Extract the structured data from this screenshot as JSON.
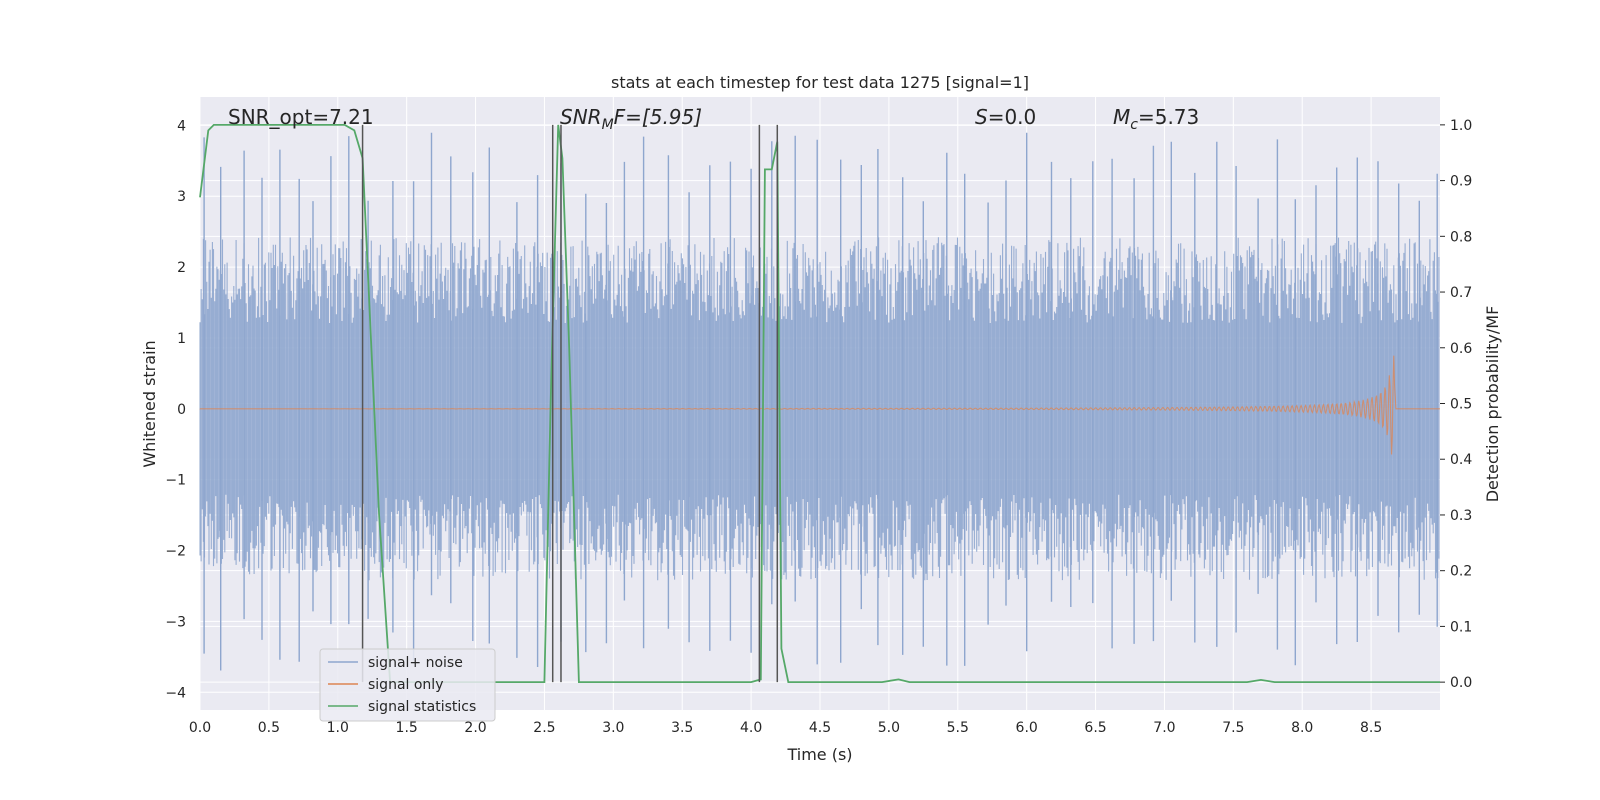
{
  "chart_data": {
    "type": "line",
    "title": "stats at each timestep for test data 1275 [signal=1]",
    "xlabel": "Time (s)",
    "ylabel_left": "Whitened strain",
    "ylabel_right": "Detection probability/MF",
    "xlim": [
      0.0,
      9.0
    ],
    "ylim_left": [
      -4.25,
      4.4
    ],
    "ylim_right": [
      -0.05,
      1.05
    ],
    "x_ticks": [
      "0.0",
      "0.5",
      "1.0",
      "1.5",
      "2.0",
      "2.5",
      "3.0",
      "3.5",
      "4.0",
      "4.5",
      "5.0",
      "5.5",
      "6.0",
      "6.5",
      "7.0",
      "7.5",
      "8.0",
      "8.5"
    ],
    "y_left_ticks": [
      "4",
      "3",
      "2",
      "1",
      "0",
      "−1",
      "−2",
      "−3",
      "−4"
    ],
    "y_right_ticks": [
      "1.0",
      "0.9",
      "0.8",
      "0.7",
      "0.6",
      "0.5",
      "0.4",
      "0.3",
      "0.2",
      "0.1",
      "0.0"
    ],
    "grid": true,
    "legend_placement": "lower-left",
    "annotations": {
      "snr_opt": "SNR_opt=7.21",
      "snr_mf_main": "SNR",
      "snr_mf_sub": "M",
      "snr_mf_rest": "F=[5.95]",
      "s_main": "S",
      "s_rest": "=0.0",
      "mc_main": "M",
      "mc_sub": "c",
      "mc_rest": "=5.73"
    },
    "series": [
      {
        "name": "signal+ noise",
        "color": "#8ea6ce",
        "axis": "left",
        "description_envelope": {
          "typical_abs": 2.2,
          "max": 4.0,
          "min": -3.9
        },
        "spikes_x": [
          0.03,
          0.15,
          0.32,
          0.45,
          0.58,
          0.72,
          0.82,
          0.95,
          1.08,
          1.22,
          1.4,
          1.55,
          1.68,
          1.82,
          1.98,
          2.1,
          2.3,
          2.45,
          2.62,
          2.8,
          2.95,
          3.08,
          3.22,
          3.4,
          3.55,
          3.7,
          3.85,
          4.0,
          4.15,
          4.32,
          4.48,
          4.65,
          4.8,
          4.92,
          5.1,
          5.25,
          5.42,
          5.55,
          5.72,
          5.85,
          6.0,
          6.18,
          6.32,
          6.48,
          6.62,
          6.78,
          6.92,
          7.05,
          7.22,
          7.38,
          7.52,
          7.68,
          7.82,
          7.95,
          8.1,
          8.25,
          8.4,
          8.55,
          8.7,
          8.85,
          8.98
        ]
      },
      {
        "name": "signal only",
        "color": "#dd8452",
        "axis": "left",
        "chirp_end_time": 8.67,
        "chirp_peak_amplitude": 0.75
      },
      {
        "name": "signal statistics",
        "color": "#55a868",
        "axis": "right",
        "x": [
          0.0,
          0.06,
          0.1,
          0.15,
          1.05,
          1.12,
          1.18,
          1.3,
          1.38,
          2.3,
          2.5,
          2.55,
          2.6,
          2.63,
          2.68,
          2.75,
          4.0,
          4.07,
          4.1,
          4.15,
          4.19,
          4.22,
          4.27,
          4.3,
          4.95,
          5.07,
          5.15,
          7.6,
          7.7,
          7.8,
          8.0,
          8.1,
          9.0
        ],
        "values": [
          0.87,
          0.99,
          1.0,
          1.0,
          1.0,
          0.99,
          0.94,
          0.3,
          0.0,
          0.0,
          0.0,
          0.55,
          1.0,
          0.94,
          0.6,
          0.0,
          0.0,
          0.005,
          0.92,
          0.92,
          0.97,
          0.06,
          0.0,
          0.0,
          0.0,
          0.005,
          0.0,
          0.0,
          0.004,
          0.0,
          0.0,
          0.0,
          0.0
        ]
      }
    ],
    "vertical_markers_x": [
      1.18,
      2.56,
      2.62,
      4.06,
      4.19
    ]
  }
}
